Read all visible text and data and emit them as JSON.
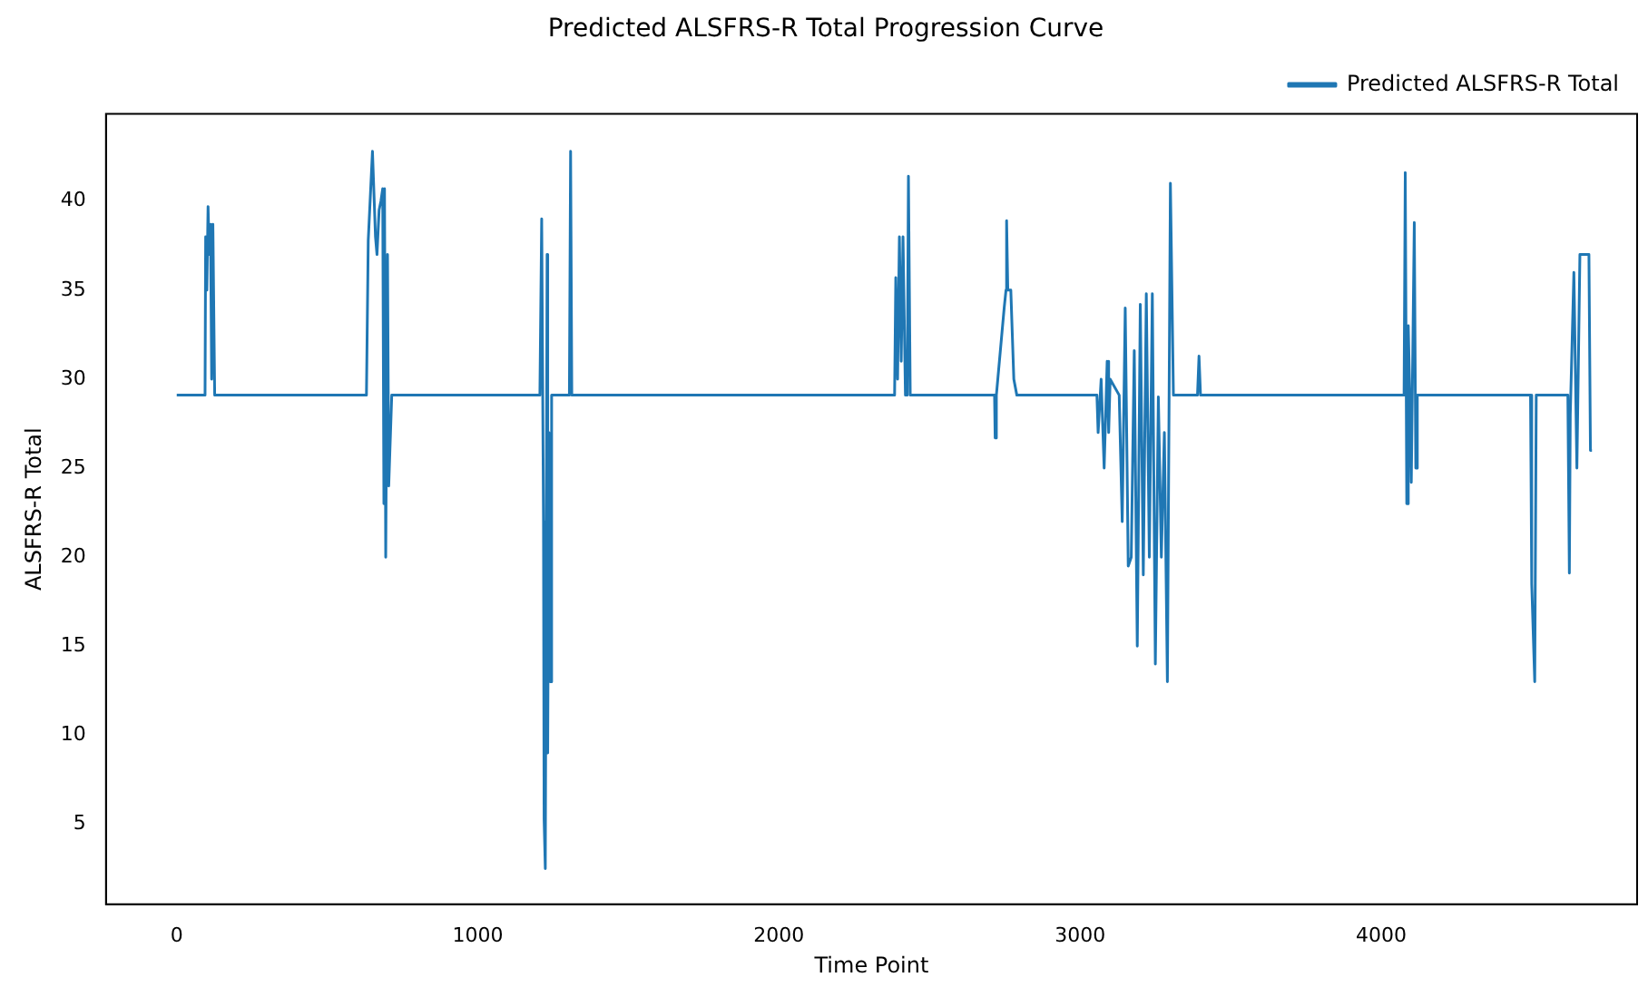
{
  "chart_data": {
    "type": "line",
    "title": "Predicted ALSFRS-R Total Progression Curve",
    "xlabel": "Time Point",
    "ylabel": "ALSFRS-R Total",
    "x": [
      0,
      94,
      96,
      100,
      104,
      108,
      112,
      116,
      120,
      126,
      630,
      636,
      650,
      660,
      665,
      672,
      678,
      684,
      688,
      690,
      694,
      700,
      704,
      714,
      1206,
      1212,
      1218,
      1220,
      1224,
      1230,
      1232,
      1236,
      1240,
      1245,
      1304,
      1308,
      1312,
      2384,
      2388,
      2394,
      2400,
      2406,
      2412,
      2420,
      2426,
      2430,
      2436,
      2716,
      2718,
      2722,
      2748,
      2754,
      2756,
      2760,
      2770,
      2780,
      2790,
      3056,
      3060,
      3070,
      3080,
      3090,
      3095,
      3100,
      3130,
      3140,
      3150,
      3160,
      3170,
      3180,
      3190,
      3200,
      3210,
      3220,
      3230,
      3240,
      3250,
      3260,
      3270,
      3280,
      3290,
      3300,
      3310,
      3390,
      3395,
      3400,
      4076,
      4080,
      4085,
      4090,
      4095,
      4100,
      4110,
      4115,
      4120,
      4496,
      4500,
      4510,
      4515,
      4620,
      4625,
      4628,
      4640,
      4650,
      4660,
      4690,
      4695,
      4700
    ],
    "series": [
      {
        "name": "Predicted ALSFRS-R Total",
        "color": "#1f77b4",
        "values": [
          29.1,
          29.1,
          38,
          35,
          39.7,
          37,
          38.7,
          30,
          38.7,
          29.1,
          29.1,
          37.8,
          42.8,
          38,
          37,
          39.5,
          40,
          40.7,
          23,
          40.7,
          20,
          37,
          24,
          29.1,
          29.1,
          39,
          22,
          5.3,
          2.5,
          37,
          9,
          27,
          13,
          29.1,
          29.1,
          42.8,
          29.1,
          29.1,
          35.7,
          30,
          38,
          31,
          38,
          29.1,
          29.1,
          41.4,
          29.1,
          29.1,
          26.7,
          29.1,
          34,
          35,
          38.9,
          35,
          35,
          30,
          29.1,
          29.1,
          27,
          30,
          25,
          31,
          27,
          30,
          29.1,
          22,
          34,
          19.5,
          20,
          31.6,
          15,
          34.2,
          19,
          34.8,
          20,
          34.8,
          14,
          29,
          20,
          27,
          13,
          41,
          29.1,
          29.1,
          31.3,
          29.1,
          29.1,
          41.6,
          23,
          33,
          29.1,
          24.2,
          38.8,
          25,
          29.1,
          29.1,
          18.5,
          13,
          29.1,
          29.1,
          19.1,
          28,
          36,
          25,
          37,
          37,
          26,
          26
        ]
      }
    ],
    "xlim": [
      -235,
      4850
    ],
    "xticks": [
      0,
      1000,
      2000,
      3000,
      4000
    ],
    "ylim": [
      0.5,
      44.9
    ],
    "yticks": [
      5,
      10,
      15,
      20,
      25,
      30,
      35,
      40
    ],
    "legend": "top right",
    "grid": false
  }
}
